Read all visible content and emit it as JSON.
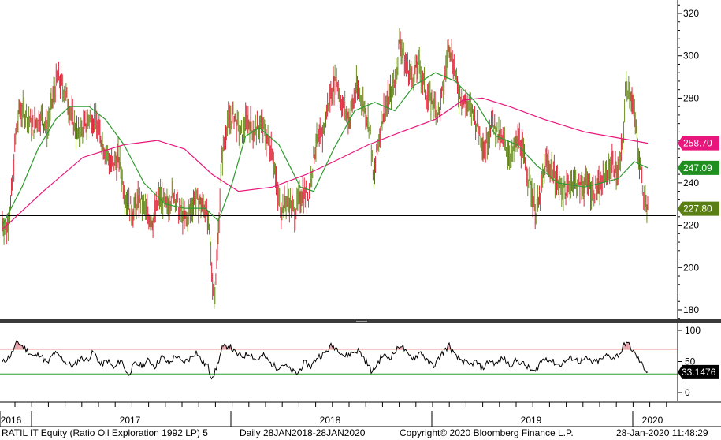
{
  "chart_data": [
    {
      "type": "candlestick",
      "panel": "price",
      "ylim": [
        172,
        328
      ],
      "yticks": [
        180,
        200,
        220,
        240,
        260,
        280,
        300,
        320
      ],
      "x_labels": [
        "2016",
        "2017",
        "2018",
        "2019",
        "2020"
      ],
      "support_level": 224.5,
      "price_points": [
        {
          "d": "2016-11-01",
          "v": 222
        },
        {
          "d": "2016-11-10",
          "v": 218
        },
        {
          "d": "2016-11-20",
          "v": 230
        },
        {
          "d": "2016-12-01",
          "v": 262
        },
        {
          "d": "2016-12-10",
          "v": 275
        },
        {
          "d": "2016-12-25",
          "v": 272
        },
        {
          "d": "2017-01-10",
          "v": 266
        },
        {
          "d": "2017-01-25",
          "v": 272
        },
        {
          "d": "2017-02-10",
          "v": 266
        },
        {
          "d": "2017-02-25",
          "v": 283
        },
        {
          "d": "2017-03-05",
          "v": 290
        },
        {
          "d": "2017-03-20",
          "v": 284
        },
        {
          "d": "2017-04-05",
          "v": 272
        },
        {
          "d": "2017-04-20",
          "v": 262
        },
        {
          "d": "2017-05-05",
          "v": 267
        },
        {
          "d": "2017-05-20",
          "v": 272
        },
        {
          "d": "2017-06-05",
          "v": 265
        },
        {
          "d": "2017-06-20",
          "v": 255
        },
        {
          "d": "2017-07-05",
          "v": 248
        },
        {
          "d": "2017-07-20",
          "v": 252
        },
        {
          "d": "2017-08-05",
          "v": 233
        },
        {
          "d": "2017-08-20",
          "v": 226
        },
        {
          "d": "2017-09-05",
          "v": 232
        },
        {
          "d": "2017-09-20",
          "v": 226
        },
        {
          "d": "2017-10-05",
          "v": 222
        },
        {
          "d": "2017-10-20",
          "v": 234
        },
        {
          "d": "2017-11-05",
          "v": 228
        },
        {
          "d": "2017-11-20",
          "v": 236
        },
        {
          "d": "2017-12-05",
          "v": 226
        },
        {
          "d": "2017-12-20",
          "v": 222
        },
        {
          "d": "2018-01-05",
          "v": 232
        },
        {
          "d": "2018-01-20",
          "v": 230
        },
        {
          "d": "2018-02-01",
          "v": 228
        },
        {
          "d": "2018-02-10",
          "v": 212
        },
        {
          "d": "2018-02-15",
          "v": 196
        },
        {
          "d": "2018-02-20",
          "v": 186
        },
        {
          "d": "2018-02-28",
          "v": 212
        },
        {
          "d": "2018-03-08",
          "v": 250
        },
        {
          "d": "2018-03-20",
          "v": 268
        },
        {
          "d": "2018-04-05",
          "v": 272
        },
        {
          "d": "2018-04-20",
          "v": 262
        },
        {
          "d": "2018-05-05",
          "v": 270
        },
        {
          "d": "2018-05-20",
          "v": 264
        },
        {
          "d": "2018-06-05",
          "v": 268
        },
        {
          "d": "2018-06-20",
          "v": 260
        },
        {
          "d": "2018-07-01",
          "v": 256
        },
        {
          "d": "2018-07-10",
          "v": 236
        },
        {
          "d": "2018-07-20",
          "v": 228
        },
        {
          "d": "2018-08-05",
          "v": 232
        },
        {
          "d": "2018-08-20",
          "v": 226
        },
        {
          "d": "2018-09-05",
          "v": 236
        },
        {
          "d": "2018-09-20",
          "v": 234
        },
        {
          "d": "2018-10-05",
          "v": 258
        },
        {
          "d": "2018-10-20",
          "v": 262
        },
        {
          "d": "2018-11-05",
          "v": 280
        },
        {
          "d": "2018-11-20",
          "v": 290
        },
        {
          "d": "2018-12-05",
          "v": 276
        },
        {
          "d": "2018-12-20",
          "v": 270
        },
        {
          "d": "2019-01-05",
          "v": 285
        },
        {
          "d": "2019-01-20",
          "v": 278
        },
        {
          "d": "2019-02-05",
          "v": 265
        },
        {
          "d": "2019-02-12",
          "v": 240
        },
        {
          "d": "2019-02-20",
          "v": 255
        },
        {
          "d": "2019-03-05",
          "v": 272
        },
        {
          "d": "2019-03-20",
          "v": 280
        },
        {
          "d": "2019-04-05",
          "v": 292
        },
        {
          "d": "2019-04-12",
          "v": 308
        },
        {
          "d": "2019-04-25",
          "v": 296
        },
        {
          "d": "2019-05-10",
          "v": 290
        },
        {
          "d": "2019-05-25",
          "v": 296
        },
        {
          "d": "2019-06-10",
          "v": 282
        },
        {
          "d": "2019-06-25",
          "v": 278
        },
        {
          "d": "2019-07-10",
          "v": 272
        },
        {
          "d": "2019-07-20",
          "v": 286
        },
        {
          "d": "2019-08-01",
          "v": 306
        },
        {
          "d": "2019-08-10",
          "v": 298
        },
        {
          "d": "2019-08-20",
          "v": 284
        },
        {
          "d": "2019-09-05",
          "v": 278
        },
        {
          "d": "2019-09-20",
          "v": 274
        },
        {
          "d": "2019-10-05",
          "v": 266
        },
        {
          "d": "2019-10-20",
          "v": 256
        },
        {
          "d": "2019-11-05",
          "v": 270
        },
        {
          "d": "2019-11-20",
          "v": 262
        },
        {
          "d": "2019-12-05",
          "v": 258
        },
        {
          "d": "2019-12-20",
          "v": 252
        },
        {
          "d": "2020-01-05",
          "v": 262
        },
        {
          "d": "2020-01-20",
          "v": 248
        },
        {
          "d": "2020-02-05",
          "v": 234
        },
        {
          "d": "2020-02-12",
          "v": 226
        },
        {
          "d": "2020-02-20",
          "v": 232
        },
        {
          "d": "2020-03-05",
          "v": 250
        },
        {
          "d": "2020-03-20",
          "v": 246
        },
        {
          "d": "2020-04-05",
          "v": 238
        },
        {
          "d": "2020-04-20",
          "v": 236
        },
        {
          "d": "2020-05-05",
          "v": 242
        },
        {
          "d": "2020-05-20",
          "v": 238
        },
        {
          "d": "2020-06-05",
          "v": 240
        },
        {
          "d": "2020-06-20",
          "v": 236
        },
        {
          "d": "2020-07-05",
          "v": 238
        },
        {
          "d": "2020-07-20",
          "v": 246
        },
        {
          "d": "2020-08-01",
          "v": 250
        },
        {
          "d": "2020-08-15",
          "v": 244
        },
        {
          "d": "2020-08-25",
          "v": 258
        },
        {
          "d": "2020-09-01",
          "v": 286
        },
        {
          "d": "2020-09-10",
          "v": 284
        },
        {
          "d": "2020-09-20",
          "v": 272
        },
        {
          "d": "2020-10-01",
          "v": 252
        },
        {
          "d": "2020-10-10",
          "v": 234
        },
        {
          "d": "2020-10-20",
          "v": 227.8
        }
      ],
      "ma_green": [
        {
          "d": "2016-11-01",
          "v": 220
        },
        {
          "d": "2016-12-15",
          "v": 238
        },
        {
          "d": "2017-01-20",
          "v": 256
        },
        {
          "d": "2017-03-01",
          "v": 270
        },
        {
          "d": "2017-04-01",
          "v": 276
        },
        {
          "d": "2017-05-15",
          "v": 276
        },
        {
          "d": "2017-06-20",
          "v": 270
        },
        {
          "d": "2017-08-01",
          "v": 258
        },
        {
          "d": "2017-09-15",
          "v": 240
        },
        {
          "d": "2017-11-01",
          "v": 230
        },
        {
          "d": "2017-12-15",
          "v": 228
        },
        {
          "d": "2018-01-31",
          "v": 228
        },
        {
          "d": "2018-03-01",
          "v": 222
        },
        {
          "d": "2018-04-01",
          "v": 240
        },
        {
          "d": "2018-05-01",
          "v": 262
        },
        {
          "d": "2018-06-01",
          "v": 266
        },
        {
          "d": "2018-07-15",
          "v": 258
        },
        {
          "d": "2018-09-01",
          "v": 238
        },
        {
          "d": "2018-10-01",
          "v": 236
        },
        {
          "d": "2018-11-15",
          "v": 256
        },
        {
          "d": "2019-01-01",
          "v": 274
        },
        {
          "d": "2019-02-15",
          "v": 278
        },
        {
          "d": "2019-04-01",
          "v": 274
        },
        {
          "d": "2019-05-15",
          "v": 286
        },
        {
          "d": "2019-07-01",
          "v": 292
        },
        {
          "d": "2019-08-15",
          "v": 288
        },
        {
          "d": "2019-09-30",
          "v": 278
        },
        {
          "d": "2019-11-15",
          "v": 262
        },
        {
          "d": "2020-01-01",
          "v": 258
        },
        {
          "d": "2020-02-15",
          "v": 248
        },
        {
          "d": "2020-04-01",
          "v": 240
        },
        {
          "d": "2020-06-01",
          "v": 238
        },
        {
          "d": "2020-08-15",
          "v": 242
        },
        {
          "d": "2020-09-20",
          "v": 250
        },
        {
          "d": "2020-10-20",
          "v": 247.09
        }
      ],
      "ma_magenta": [
        {
          "d": "2016-11-01",
          "v": 218
        },
        {
          "d": "2017-02-01",
          "v": 236
        },
        {
          "d": "2017-05-01",
          "v": 252
        },
        {
          "d": "2017-08-01",
          "v": 258
        },
        {
          "d": "2017-10-15",
          "v": 260
        },
        {
          "d": "2017-12-15",
          "v": 256
        },
        {
          "d": "2018-02-15",
          "v": 244
        },
        {
          "d": "2018-04-15",
          "v": 236
        },
        {
          "d": "2018-07-01",
          "v": 238
        },
        {
          "d": "2018-09-15",
          "v": 244
        },
        {
          "d": "2018-11-15",
          "v": 250
        },
        {
          "d": "2019-02-01",
          "v": 258
        },
        {
          "d": "2019-04-15",
          "v": 264
        },
        {
          "d": "2019-07-01",
          "v": 270
        },
        {
          "d": "2019-09-01",
          "v": 279
        },
        {
          "d": "2019-10-15",
          "v": 280
        },
        {
          "d": "2019-12-15",
          "v": 276
        },
        {
          "d": "2020-03-01",
          "v": 270
        },
        {
          "d": "2020-06-01",
          "v": 264
        },
        {
          "d": "2020-10-20",
          "v": 258.7
        }
      ],
      "last_values": [
        {
          "label": "258.70",
          "bg": "#e8157c",
          "fg": "#ffffff",
          "v": 258.7
        },
        {
          "label": "247.09",
          "bg": "#1f8f1f",
          "fg": "#ffffff",
          "v": 247.09
        },
        {
          "label": "227.80",
          "bg": "#5a7f14",
          "fg": "#ffffff",
          "v": 227.8
        }
      ],
      "colors": {
        "up": "#6b8e23",
        "down": "#e0273c",
        "ma_green": "#2e9a2e",
        "ma_magenta": "#e8157c",
        "support": "#000000"
      }
    },
    {
      "type": "line",
      "panel": "rsi",
      "ylim": [
        0,
        100
      ],
      "yticks": [
        0,
        50,
        100
      ],
      "overbought": 70,
      "oversold": 30,
      "rsi_points": [
        {
          "d": "2016-11-01",
          "v": 48
        },
        {
          "d": "2016-11-20",
          "v": 60
        },
        {
          "d": "2016-12-05",
          "v": 82
        },
        {
          "d": "2016-12-20",
          "v": 72
        },
        {
          "d": "2017-01-10",
          "v": 58
        },
        {
          "d": "2017-01-25",
          "v": 62
        },
        {
          "d": "2017-02-10",
          "v": 46
        },
        {
          "d": "2017-02-25",
          "v": 64
        },
        {
          "d": "2017-03-10",
          "v": 58
        },
        {
          "d": "2017-03-25",
          "v": 48
        },
        {
          "d": "2017-04-10",
          "v": 42
        },
        {
          "d": "2017-04-25",
          "v": 56
        },
        {
          "d": "2017-05-10",
          "v": 52
        },
        {
          "d": "2017-05-25",
          "v": 66
        },
        {
          "d": "2017-06-10",
          "v": 44
        },
        {
          "d": "2017-06-25",
          "v": 52
        },
        {
          "d": "2017-07-10",
          "v": 38
        },
        {
          "d": "2017-07-25",
          "v": 54
        },
        {
          "d": "2017-08-10",
          "v": 28
        },
        {
          "d": "2017-08-25",
          "v": 46
        },
        {
          "d": "2017-09-10",
          "v": 44
        },
        {
          "d": "2017-09-25",
          "v": 52
        },
        {
          "d": "2017-10-10",
          "v": 42
        },
        {
          "d": "2017-10-25",
          "v": 58
        },
        {
          "d": "2017-11-10",
          "v": 46
        },
        {
          "d": "2017-11-25",
          "v": 60
        },
        {
          "d": "2017-12-10",
          "v": 48
        },
        {
          "d": "2017-12-25",
          "v": 54
        },
        {
          "d": "2018-01-10",
          "v": 66
        },
        {
          "d": "2018-01-25",
          "v": 48
        },
        {
          "d": "2018-02-05",
          "v": 44
        },
        {
          "d": "2018-02-12",
          "v": 26
        },
        {
          "d": "2018-02-20",
          "v": 30
        },
        {
          "d": "2018-02-28",
          "v": 48
        },
        {
          "d": "2018-03-10",
          "v": 72
        },
        {
          "d": "2018-03-25",
          "v": 76
        },
        {
          "d": "2018-04-10",
          "v": 62
        },
        {
          "d": "2018-04-25",
          "v": 58
        },
        {
          "d": "2018-05-10",
          "v": 64
        },
        {
          "d": "2018-05-25",
          "v": 52
        },
        {
          "d": "2018-06-10",
          "v": 60
        },
        {
          "d": "2018-06-25",
          "v": 48
        },
        {
          "d": "2018-07-10",
          "v": 40
        },
        {
          "d": "2018-07-25",
          "v": 46
        },
        {
          "d": "2018-08-10",
          "v": 36
        },
        {
          "d": "2018-08-25",
          "v": 30
        },
        {
          "d": "2018-09-10",
          "v": 48
        },
        {
          "d": "2018-09-25",
          "v": 42
        },
        {
          "d": "2018-10-10",
          "v": 58
        },
        {
          "d": "2018-10-25",
          "v": 62
        },
        {
          "d": "2018-11-10",
          "v": 76
        },
        {
          "d": "2018-11-25",
          "v": 70
        },
        {
          "d": "2018-12-10",
          "v": 58
        },
        {
          "d": "2018-12-25",
          "v": 64
        },
        {
          "d": "2019-01-10",
          "v": 68
        },
        {
          "d": "2019-01-25",
          "v": 52
        },
        {
          "d": "2019-02-10",
          "v": 32
        },
        {
          "d": "2019-02-20",
          "v": 46
        },
        {
          "d": "2019-03-05",
          "v": 60
        },
        {
          "d": "2019-03-20",
          "v": 56
        },
        {
          "d": "2019-04-05",
          "v": 68
        },
        {
          "d": "2019-04-15",
          "v": 78
        },
        {
          "d": "2019-04-30",
          "v": 60
        },
        {
          "d": "2019-05-15",
          "v": 56
        },
        {
          "d": "2019-05-30",
          "v": 66
        },
        {
          "d": "2019-06-15",
          "v": 48
        },
        {
          "d": "2019-06-30",
          "v": 44
        },
        {
          "d": "2019-07-15",
          "v": 62
        },
        {
          "d": "2019-08-01",
          "v": 76
        },
        {
          "d": "2019-08-15",
          "v": 58
        },
        {
          "d": "2019-08-30",
          "v": 52
        },
        {
          "d": "2019-09-15",
          "v": 44
        },
        {
          "d": "2019-09-30",
          "v": 50
        },
        {
          "d": "2019-10-15",
          "v": 38
        },
        {
          "d": "2019-10-30",
          "v": 52
        },
        {
          "d": "2019-11-15",
          "v": 46
        },
        {
          "d": "2019-11-30",
          "v": 56
        },
        {
          "d": "2019-12-15",
          "v": 44
        },
        {
          "d": "2019-12-30",
          "v": 52
        },
        {
          "d": "2020-01-15",
          "v": 46
        },
        {
          "d": "2020-01-30",
          "v": 38
        },
        {
          "d": "2020-02-10",
          "v": 32
        },
        {
          "d": "2020-02-20",
          "v": 48
        },
        {
          "d": "2020-03-05",
          "v": 56
        },
        {
          "d": "2020-03-20",
          "v": 50
        },
        {
          "d": "2020-04-05",
          "v": 44
        },
        {
          "d": "2020-04-20",
          "v": 52
        },
        {
          "d": "2020-05-05",
          "v": 56
        },
        {
          "d": "2020-05-20",
          "v": 50
        },
        {
          "d": "2020-06-05",
          "v": 54
        },
        {
          "d": "2020-06-20",
          "v": 48
        },
        {
          "d": "2020-07-05",
          "v": 52
        },
        {
          "d": "2020-07-20",
          "v": 60
        },
        {
          "d": "2020-08-05",
          "v": 56
        },
        {
          "d": "2020-08-20",
          "v": 64
        },
        {
          "d": "2020-09-01",
          "v": 82
        },
        {
          "d": "2020-09-10",
          "v": 74
        },
        {
          "d": "2020-09-25",
          "v": 58
        },
        {
          "d": "2020-10-10",
          "v": 42
        },
        {
          "d": "2020-10-20",
          "v": 33.1476
        }
      ],
      "last_value": {
        "label": "33.1476",
        "bg": "#000000",
        "fg": "#ffffff",
        "v": 33.1476
      },
      "colors": {
        "line": "#000000",
        "overbought": "#d62728",
        "oversold": "#2ca02c",
        "fill_over": "#e8a0a8"
      }
    }
  ],
  "footer": {
    "ticker": "RATIL IT Equity (Ratio Oil Exploration 1992 LP) 5",
    "period": "Daily 28JAN2018-28JAN2020",
    "copyright": "Copyright© 2020 Bloomberg Finance L.P.",
    "timestamp": "28-Jan-2020  11:48:29"
  }
}
